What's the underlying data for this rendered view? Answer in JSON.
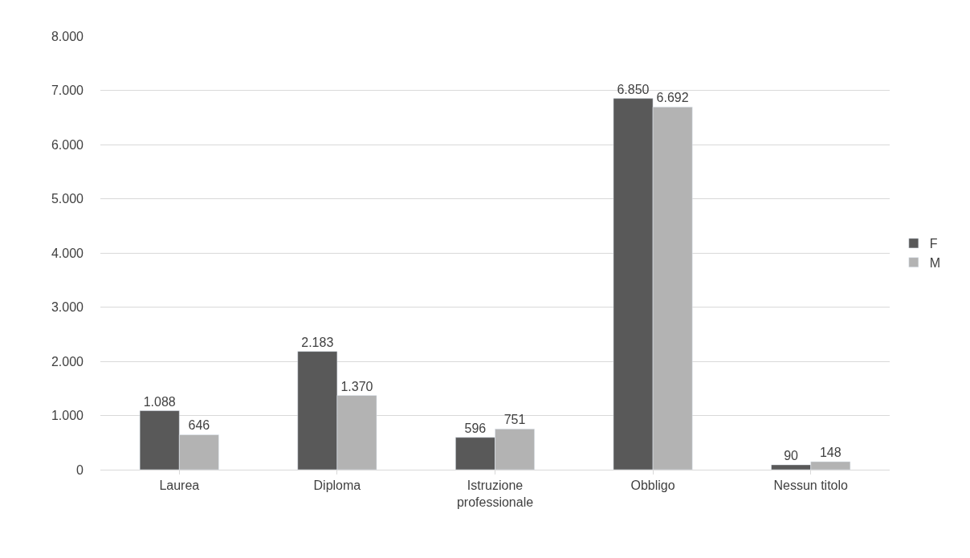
{
  "chart_data": {
    "type": "bar",
    "categories": [
      "Laurea",
      "Diploma",
      "Istruzione professionale",
      "Obbligo",
      "Nessun titolo"
    ],
    "series": [
      {
        "name": "F",
        "color": "#595959",
        "values": [
          1088,
          2183,
          596,
          6850,
          90
        ],
        "value_labels": [
          "1.088",
          "2.183",
          "596",
          "6.850",
          "90"
        ]
      },
      {
        "name": "M",
        "color": "#b3b3b3",
        "values": [
          646,
          1370,
          751,
          6692,
          148
        ],
        "value_labels": [
          "646",
          "1.370",
          "751",
          "6.692",
          "148"
        ]
      }
    ],
    "ylim": [
      0,
      8000
    ],
    "yticks": [
      {
        "value": 0,
        "label": "0"
      },
      {
        "value": 1000,
        "label": "1.000"
      },
      {
        "value": 2000,
        "label": "2.000"
      },
      {
        "value": 3000,
        "label": "3.000"
      },
      {
        "value": 4000,
        "label": "4.000"
      },
      {
        "value": 5000,
        "label": "5.000"
      },
      {
        "value": 6000,
        "label": "6.000"
      },
      {
        "value": 7000,
        "label": "7.000"
      },
      {
        "value": 8000,
        "label": "8.000"
      }
    ],
    "grid": "y",
    "legend": "right"
  }
}
